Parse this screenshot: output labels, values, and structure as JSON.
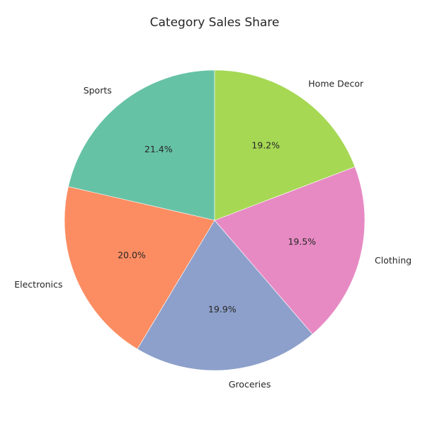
{
  "chart_data": {
    "type": "pie",
    "title": "Category Sales Share",
    "categories": [
      "Sports",
      "Electronics",
      "Groceries",
      "Clothing",
      "Home Decor"
    ],
    "values": [
      21.4,
      20.0,
      19.9,
      19.5,
      19.2
    ],
    "value_labels": [
      "21.4%",
      "20.0%",
      "19.9%",
      "19.5%",
      "19.2%"
    ],
    "colors": [
      "#66c2a5",
      "#fc8d62",
      "#8da0cb",
      "#e78ac3",
      "#a6d854"
    ],
    "start_angle_deg": 90,
    "direction": "counterclockwise",
    "legend": "none"
  }
}
